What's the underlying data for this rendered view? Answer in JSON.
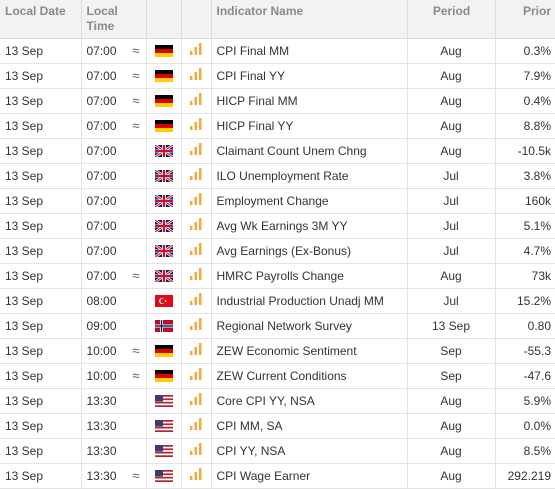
{
  "headers": {
    "date": "Local Date",
    "time_line1": "Local",
    "time_line2": "Time",
    "indicator": "Indicator Name",
    "period": "Period",
    "prior": "Prior"
  },
  "approx_symbol": "≈",
  "rows": [
    {
      "date": "13 Sep",
      "time": "07:00",
      "approx": true,
      "country": "DE",
      "indicator": "CPI Final MM",
      "period": "Aug",
      "prior": "0.3%"
    },
    {
      "date": "13 Sep",
      "time": "07:00",
      "approx": true,
      "country": "DE",
      "indicator": "CPI Final YY",
      "period": "Aug",
      "prior": "7.9%"
    },
    {
      "date": "13 Sep",
      "time": "07:00",
      "approx": true,
      "country": "DE",
      "indicator": "HICP Final MM",
      "period": "Aug",
      "prior": "0.4%"
    },
    {
      "date": "13 Sep",
      "time": "07:00",
      "approx": true,
      "country": "DE",
      "indicator": "HICP Final YY",
      "period": "Aug",
      "prior": "8.8%"
    },
    {
      "date": "13 Sep",
      "time": "07:00",
      "approx": false,
      "country": "GB",
      "indicator": "Claimant Count Unem Chng",
      "period": "Aug",
      "prior": "-10.5k"
    },
    {
      "date": "13 Sep",
      "time": "07:00",
      "approx": false,
      "country": "GB",
      "indicator": "ILO Unemployment Rate",
      "period": "Jul",
      "prior": "3.8%"
    },
    {
      "date": "13 Sep",
      "time": "07:00",
      "approx": false,
      "country": "GB",
      "indicator": "Employment Change",
      "period": "Jul",
      "prior": "160k"
    },
    {
      "date": "13 Sep",
      "time": "07:00",
      "approx": false,
      "country": "GB",
      "indicator": "Avg Wk Earnings 3M YY",
      "period": "Jul",
      "prior": "5.1%"
    },
    {
      "date": "13 Sep",
      "time": "07:00",
      "approx": false,
      "country": "GB",
      "indicator": "Avg Earnings (Ex-Bonus)",
      "period": "Jul",
      "prior": "4.7%"
    },
    {
      "date": "13 Sep",
      "time": "07:00",
      "approx": true,
      "country": "GB",
      "indicator": "HMRC Payrolls Change",
      "period": "Aug",
      "prior": "73k"
    },
    {
      "date": "13 Sep",
      "time": "08:00",
      "approx": false,
      "country": "TR",
      "indicator": "Industrial Production Unadj MM",
      "period": "Jul",
      "prior": "15.2%"
    },
    {
      "date": "13 Sep",
      "time": "09:00",
      "approx": false,
      "country": "NO",
      "indicator": "Regional Network Survey",
      "period": "13 Sep",
      "prior": "0.80"
    },
    {
      "date": "13 Sep",
      "time": "10:00",
      "approx": true,
      "country": "DE",
      "indicator": "ZEW Economic Sentiment",
      "period": "Sep",
      "prior": "-55.3"
    },
    {
      "date": "13 Sep",
      "time": "10:00",
      "approx": true,
      "country": "DE",
      "indicator": "ZEW Current Conditions",
      "period": "Sep",
      "prior": "-47.6"
    },
    {
      "date": "13 Sep",
      "time": "13:30",
      "approx": false,
      "country": "US",
      "indicator": "Core CPI YY, NSA",
      "period": "Aug",
      "prior": "5.9%"
    },
    {
      "date": "13 Sep",
      "time": "13:30",
      "approx": false,
      "country": "US",
      "indicator": "CPI MM, SA",
      "period": "Aug",
      "prior": "0.0%"
    },
    {
      "date": "13 Sep",
      "time": "13:30",
      "approx": false,
      "country": "US",
      "indicator": "CPI YY, NSA",
      "period": "Aug",
      "prior": "8.5%"
    },
    {
      "date": "13 Sep",
      "time": "13:30",
      "approx": true,
      "country": "US",
      "indicator": "CPI Wage Earner",
      "period": "Aug",
      "prior": "292.219"
    }
  ],
  "colors": {
    "importance_bar": "#f5a93a",
    "header_text": "#8a8a8a",
    "header_bg": "#f2f2f2"
  }
}
